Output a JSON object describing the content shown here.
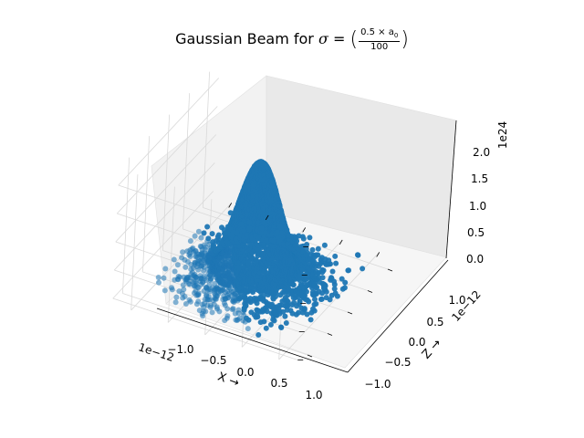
{
  "chart_data": {
    "type": "scatter",
    "projection": "3d",
    "title": {
      "prefix": "Gaussian Beam for ",
      "symbol": "σ",
      "equals": " = ",
      "numerator": "0.5 × a",
      "numerator_sub": "0",
      "denominator": "100"
    },
    "xlabel": "X →",
    "ylabel": "Z →",
    "zlabel": "",
    "x_offset_text": "1e−12",
    "y_offset_text": "1e−12",
    "z_offset_text": "1e24",
    "x_ticks": [
      "−1.0",
      "−0.5",
      "0.0",
      "0.5",
      "1.0"
    ],
    "y_ticks": [
      "−1.0",
      "−0.5",
      "0.0",
      "0.5",
      "1.0"
    ],
    "z_ticks": [
      "0.0",
      "0.5",
      "1.0",
      "1.5",
      "2.0"
    ],
    "xlim": [
      -1.25,
      1.25
    ],
    "ylim": [
      -1.25,
      1.25
    ],
    "zlim": [
      -0.1,
      2.3
    ],
    "grid": true,
    "marker_color": "#1f77b4",
    "peak": 2.0,
    "sigma": 0.25
  }
}
